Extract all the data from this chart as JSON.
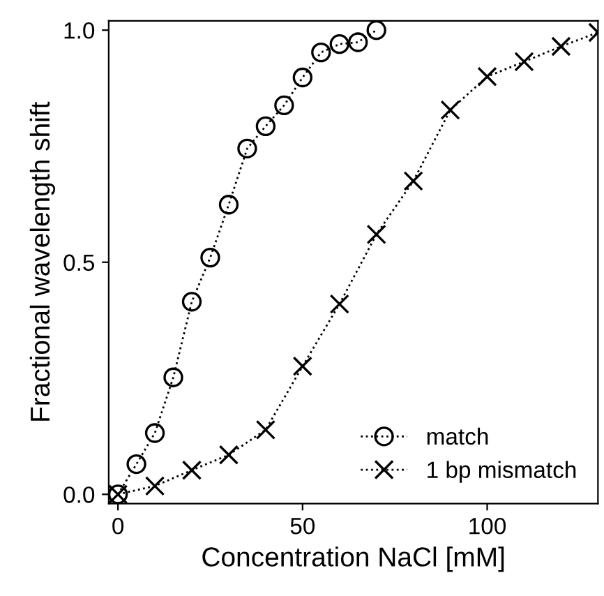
{
  "chart_data": {
    "type": "line",
    "xlabel": "Concentration NaCl [mM]",
    "ylabel": "Fractional wavelength shift",
    "xlim": [
      -2.5,
      130
    ],
    "ylim": [
      -0.02,
      1.02
    ],
    "xticks": [
      0,
      50,
      100
    ],
    "yticks": [
      {
        "value": 0,
        "label": "0.0"
      },
      {
        "value": 0.5,
        "label": "0.5"
      },
      {
        "value": 1,
        "label": "1.0"
      }
    ],
    "grid": false,
    "legend": "bottom right",
    "line_style": "dotted",
    "series": [
      {
        "name": "match",
        "color": "#000000",
        "marker": "circle",
        "x": [
          0,
          5,
          10,
          15,
          20,
          25,
          30,
          35,
          40,
          45,
          50,
          55,
          60,
          65,
          70
        ],
        "values": [
          0,
          0.065,
          0.132,
          0.252,
          0.415,
          0.51,
          0.624,
          0.745,
          0.793,
          0.838,
          0.898,
          0.952,
          0.97,
          0.974,
          1.0
        ]
      },
      {
        "name": "1 bp mismatch",
        "color": "#000000",
        "marker": "cross",
        "x": [
          0,
          10,
          20,
          30,
          40,
          50,
          60,
          70,
          80,
          90,
          100,
          110,
          120,
          130
        ],
        "values": [
          0,
          0.018,
          0.052,
          0.085,
          0.139,
          0.276,
          0.41,
          0.56,
          0.675,
          0.828,
          0.9,
          0.932,
          0.965,
          0.995
        ]
      }
    ]
  }
}
